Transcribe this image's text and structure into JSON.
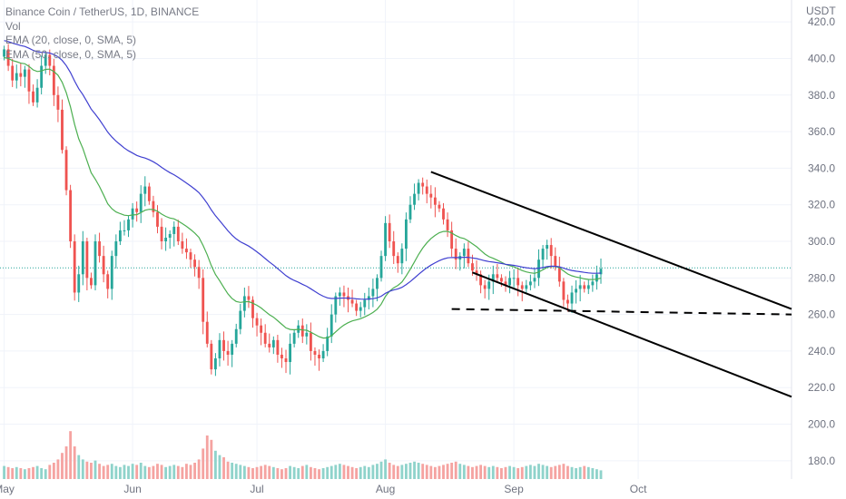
{
  "header": {
    "symbol_line": "Binance Coin / TetherUS, 1D, BINANCE",
    "vol_label": "Vol",
    "ema1_label": "EMA (20, close, 0, SMA, 5)",
    "ema2_label": "EMA (50, close, 0, SMA, 5)"
  },
  "colors": {
    "up": "#26a69a",
    "down": "#ef5350",
    "vol_up": "#8fd3cb",
    "vol_down": "#f5a3a1",
    "ema20": "#4caf50",
    "ema50": "#3f3fd0",
    "trendline": "#000000",
    "last_price_line": "#26a69a"
  },
  "chart_data": {
    "type": "candlestick",
    "y_axis_title": "USDT",
    "y_ticks": [
      "180.0",
      "200.0",
      "220.0",
      "240.0",
      "260.0",
      "280.0",
      "300.0",
      "320.0",
      "340.0",
      "360.0",
      "380.0",
      "400.0",
      "420.0"
    ],
    "x_ticks": [
      {
        "label": "May",
        "day": 0
      },
      {
        "label": "Jun",
        "day": 31
      },
      {
        "label": "Jul",
        "day": 61
      },
      {
        "label": "Aug",
        "day": 92
      },
      {
        "label": "Sep",
        "day": 123
      },
      {
        "label": "Oct",
        "day": 153
      }
    ],
    "ylim": [
      170,
      432
    ],
    "xlim_days": [
      -1,
      190
    ],
    "last_price": 285.5,
    "close": [
      405,
      396,
      388,
      392,
      390,
      394,
      382,
      376,
      384,
      396,
      402,
      396,
      380,
      372,
      350,
      328,
      300,
      272,
      282,
      300,
      280,
      276,
      300,
      292,
      282,
      274,
      292,
      300,
      306,
      306,
      312,
      318,
      316,
      326,
      330,
      322,
      316,
      308,
      300,
      302,
      304,
      308,
      300,
      296,
      294,
      290,
      286,
      280,
      256,
      244,
      230,
      236,
      246,
      240,
      238,
      244,
      252,
      262,
      270,
      268,
      258,
      254,
      250,
      244,
      242,
      246,
      238,
      236,
      234,
      244,
      250,
      254,
      248,
      250,
      240,
      238,
      236,
      240,
      248,
      260,
      270,
      272,
      270,
      268,
      266,
      262,
      264,
      268,
      270,
      274,
      280,
      292,
      310,
      300,
      292,
      288,
      296,
      312,
      320,
      326,
      332,
      330,
      326,
      324,
      320,
      318,
      312,
      306,
      296,
      290,
      292,
      296,
      288,
      284,
      282,
      276,
      274,
      278,
      282,
      280,
      278,
      276,
      280,
      280,
      276,
      274,
      276,
      278,
      280,
      290,
      296,
      298,
      292,
      286,
      278,
      268,
      266,
      272,
      274,
      276,
      274,
      276,
      278,
      282,
      285
    ],
    "volume": [
      12,
      11,
      10,
      11,
      10,
      9,
      10,
      11,
      12,
      10,
      9,
      13,
      15,
      18,
      24,
      30,
      44,
      30,
      22,
      18,
      16,
      15,
      17,
      14,
      12,
      13,
      14,
      12,
      11,
      13,
      12,
      14,
      13,
      15,
      12,
      11,
      12,
      14,
      13,
      11,
      12,
      13,
      12,
      11,
      14,
      13,
      15,
      18,
      28,
      40,
      36,
      26,
      22,
      20,
      16,
      15,
      14,
      13,
      12,
      11,
      10,
      11,
      12,
      13,
      12,
      11,
      10,
      9,
      10,
      12,
      11,
      10,
      12,
      13,
      11,
      10,
      9,
      10,
      11,
      12,
      13,
      14,
      13,
      12,
      11,
      10,
      11,
      12,
      11,
      13,
      14,
      16,
      18,
      15,
      13,
      12,
      13,
      14,
      15,
      16,
      15,
      14,
      13,
      12,
      11,
      12,
      13,
      14,
      15,
      16,
      14,
      13,
      12,
      11,
      12,
      13,
      12,
      11,
      12,
      11,
      10,
      11,
      12,
      11,
      10,
      11,
      12,
      13,
      12,
      14,
      13,
      12,
      11,
      12,
      13,
      14,
      12,
      11,
      10,
      11,
      12,
      11,
      10,
      9,
      8
    ],
    "volume_max": 100,
    "ema20_period": 20,
    "ema50_period": 50,
    "ema20_seed": 400,
    "ema50_seed": 410,
    "annotations": {
      "channel_upper": {
        "day1": 103,
        "price1": 338,
        "day2": 190,
        "price2": 263
      },
      "channel_lower": {
        "day1": 113,
        "price1": 283,
        "day2": 190,
        "price2": 215
      },
      "support_dashed": {
        "day1": 108,
        "price1": 263,
        "day2": 190,
        "price2": 260
      }
    }
  }
}
